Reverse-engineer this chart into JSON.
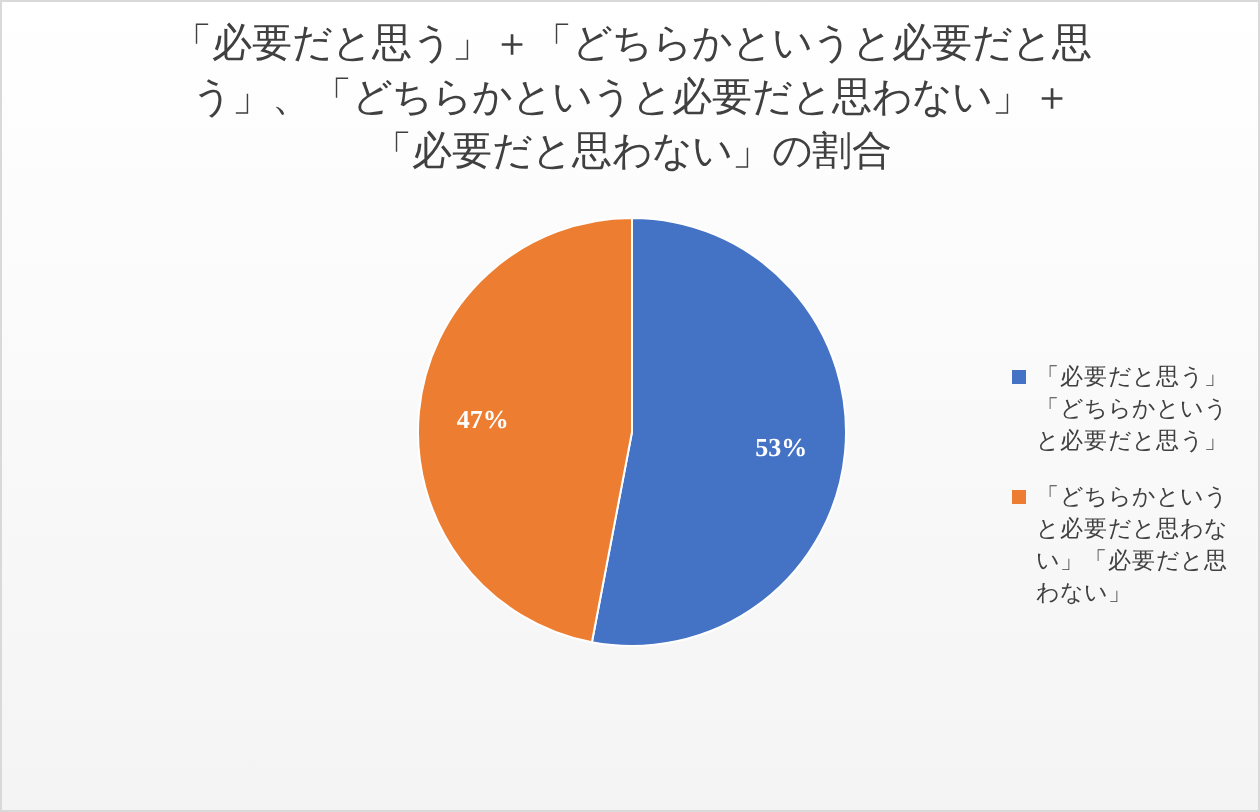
{
  "chart_data": {
    "type": "pie",
    "title": "「必要だと思う」＋「どちらかというと必要だと思う」、「どちらかというと必要だと思わない」＋「必要だと思わない」の割合",
    "categories": [
      "「必要だと思う」「どちらかというと必要だと思う」",
      "「どちらかというと必要だと思わない」「必要だと思わない」"
    ],
    "values": [
      53,
      47
    ],
    "colors": [
      "#4472c4",
      "#ed7d31"
    ],
    "value_labels": [
      "53%",
      "47%"
    ],
    "legend": "right"
  }
}
